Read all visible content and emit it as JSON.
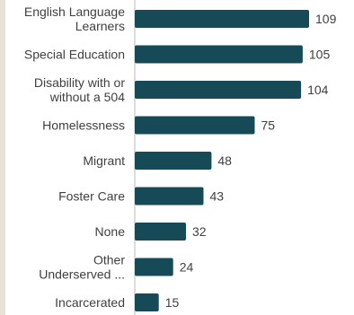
{
  "chart_data": {
    "type": "bar",
    "orientation": "horizontal",
    "title": "",
    "xlabel": "",
    "ylabel": "",
    "categories": [
      [
        "English Language",
        "Learners"
      ],
      [
        "Special Education"
      ],
      [
        "Disability with or",
        "without a 504"
      ],
      [
        "Homelessness"
      ],
      [
        "Migrant"
      ],
      [
        "Foster Care"
      ],
      [
        "None"
      ],
      [
        "Other",
        "Underserved ..."
      ],
      [
        "Incarcerated"
      ]
    ],
    "values": [
      109,
      105,
      104,
      75,
      48,
      43,
      32,
      24,
      15
    ],
    "xlim": [
      0,
      109
    ],
    "grid": false,
    "legend": "none",
    "colors": {
      "bar": "#154a56",
      "axis": "#b8b8b8",
      "text": "#404040",
      "left_band": "#e8e1d6"
    }
  }
}
